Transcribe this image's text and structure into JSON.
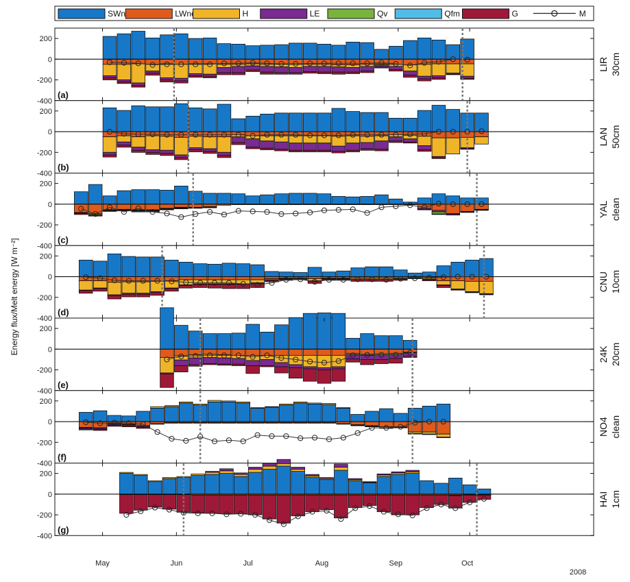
{
  "chart_data": {
    "type": "bar",
    "ylabel": "Energy flux/Melt energy [W m⁻²]",
    "year": "2008",
    "months": [
      "May",
      "Jun",
      "Jul",
      "Aug",
      "Sep",
      "Oct"
    ],
    "ylim": [
      -400,
      300
    ],
    "yticks": [
      200,
      0,
      -200,
      -400
    ],
    "legend": [
      {
        "key": "SWnet",
        "name": "SWnet",
        "color": "#1878c8"
      },
      {
        "key": "LWnet",
        "name": "LWnet",
        "color": "#e05a1c"
      },
      {
        "key": "H",
        "name": "H",
        "color": "#f0b428"
      },
      {
        "key": "LE",
        "name": "LE",
        "color": "#7a2a90"
      },
      {
        "key": "Qv",
        "name": "Qv",
        "color": "#78b43c"
      },
      {
        "key": "Qfm",
        "name": "Qfm",
        "color": "#50bce8"
      },
      {
        "key": "G",
        "name": "G",
        "color": "#a01838"
      },
      {
        "key": "M",
        "name": "M",
        "color": "#222222"
      }
    ],
    "panels": [
      {
        "letter": "(a)",
        "site": "LIR",
        "condition": "30cm",
        "start_day": 0,
        "vlines": [
          30,
          151
        ],
        "SWnet": [
          220,
          245,
          270,
          205,
          235,
          245,
          200,
          205,
          150,
          145,
          130,
          135,
          140,
          155,
          155,
          145,
          135,
          165,
          160,
          95,
          125,
          180,
          205,
          185,
          140,
          195
        ],
        "LWnet": [
          -50,
          -50,
          -45,
          -50,
          -45,
          -50,
          -45,
          -45,
          -50,
          -50,
          -45,
          -50,
          -50,
          -50,
          -50,
          -50,
          -55,
          -55,
          -50,
          -45,
          -50,
          -55,
          -50,
          -45,
          -45,
          -45
        ],
        "H": [
          -110,
          -150,
          -185,
          -65,
          -135,
          -135,
          -95,
          -100,
          -30,
          -20,
          -20,
          -20,
          -25,
          -30,
          -20,
          -20,
          -20,
          -25,
          -20,
          -10,
          -20,
          -60,
          -115,
          -115,
          -90,
          -120
        ],
        "LE": [
          -20,
          -20,
          -25,
          -20,
          -20,
          -25,
          -20,
          -20,
          -50,
          -60,
          -40,
          -55,
          -55,
          -50,
          -50,
          -55,
          -50,
          -45,
          -45,
          -20,
          -30,
          -40,
          -25,
          -20,
          -10,
          -20
        ],
        "G": [
          -20,
          -15,
          -15,
          -20,
          -20,
          -20,
          -15,
          -15,
          -20,
          -20,
          -15,
          -20,
          -15,
          -15,
          -15,
          -15,
          -20,
          -15,
          -15,
          -10,
          -15,
          -20,
          -20,
          -15,
          -5,
          -10
        ],
        "M": [
          -30,
          -35,
          -40,
          -55,
          -50,
          -50,
          -50,
          -50,
          -40,
          -40,
          -35,
          -40,
          -45,
          -45,
          -40,
          -40,
          -40,
          -40,
          -40,
          -35,
          -45,
          -60,
          -35,
          -25,
          0,
          -5
        ]
      },
      {
        "letter": "(b)",
        "site": "LAN",
        "condition": "50cm",
        "start_day": 0,
        "vlines": [
          36,
          153
        ],
        "SWnet": [
          230,
          205,
          250,
          240,
          240,
          270,
          230,
          220,
          265,
          125,
          150,
          170,
          180,
          180,
          180,
          180,
          225,
          195,
          185,
          185,
          130,
          130,
          205,
          255,
          215,
          180,
          180
        ],
        "LWnet": [
          -50,
          -40,
          -50,
          -40,
          -45,
          -55,
          -45,
          -50,
          -50,
          -30,
          -40,
          -40,
          -40,
          -40,
          -40,
          -40,
          -45,
          -40,
          -45,
          -40,
          -30,
          -35,
          -45,
          -60,
          -60,
          -55,
          -50
        ],
        "H": [
          -150,
          -60,
          -100,
          -135,
          -135,
          -170,
          -110,
          -115,
          -150,
          -20,
          -30,
          -50,
          -60,
          -70,
          -70,
          -70,
          -95,
          -70,
          -60,
          -50,
          -20,
          -35,
          -90,
          -180,
          -155,
          -100,
          -70
        ],
        "LE": [
          -25,
          -30,
          -30,
          -25,
          -30,
          -25,
          -20,
          -25,
          -30,
          -55,
          -80,
          -70,
          -70,
          -70,
          -70,
          -70,
          -50,
          -70,
          -60,
          -80,
          -40,
          -30,
          -40,
          -10,
          0,
          -10,
          0
        ],
        "G": [
          -20,
          -20,
          -20,
          -20,
          -20,
          -20,
          -20,
          -20,
          -20,
          -20,
          -15,
          -15,
          -15,
          -15,
          -15,
          -15,
          -15,
          -15,
          -15,
          -15,
          -15,
          -10,
          -15,
          -10,
          0,
          -5,
          0
        ],
        "M": [
          0,
          -20,
          -25,
          -25,
          -30,
          -30,
          -30,
          -30,
          -30,
          -30,
          -40,
          -30,
          -30,
          -30,
          -35,
          -35,
          -35,
          -30,
          -30,
          -30,
          -30,
          -25,
          -20,
          0,
          0,
          0,
          5
        ]
      },
      {
        "letter": "(c)",
        "site": "YAL",
        "condition": "clean",
        "start_day": -12,
        "vlines": [
          38,
          157
        ],
        "SWnet": [
          120,
          190,
          80,
          130,
          140,
          140,
          135,
          175,
          125,
          105,
          105,
          100,
          80,
          90,
          100,
          105,
          105,
          100,
          75,
          70,
          75,
          90,
          50,
          20,
          60,
          100,
          80,
          60,
          60
        ],
        "LWnet": [
          -80,
          -90,
          -55,
          -50,
          -55,
          -55,
          -40,
          -30,
          -30,
          -25,
          -10,
          -5,
          -5,
          -5,
          -5,
          -5,
          -5,
          -5,
          -5,
          -5,
          -5,
          -5,
          -5,
          -5,
          -40,
          -60,
          -90,
          -70,
          -50
        ],
        "H": [
          -5,
          -10,
          -5,
          -5,
          -5,
          -5,
          -5,
          -5,
          0,
          0,
          0,
          0,
          0,
          0,
          0,
          0,
          0,
          0,
          0,
          0,
          0,
          0,
          0,
          0,
          0,
          0,
          0,
          0,
          0
        ],
        "LE": [
          -5,
          -5,
          -5,
          -5,
          -5,
          -5,
          -5,
          -5,
          -5,
          -5,
          0,
          0,
          0,
          0,
          0,
          0,
          0,
          0,
          0,
          0,
          0,
          0,
          0,
          0,
          -10,
          -15,
          -10,
          -5,
          -5
        ],
        "Qv": [
          0,
          0,
          0,
          0,
          0,
          0,
          0,
          0,
          0,
          0,
          0,
          0,
          0,
          0,
          0,
          0,
          0,
          0,
          0,
          0,
          0,
          0,
          0,
          0,
          0,
          -20,
          0,
          0,
          0
        ],
        "G": [
          -10,
          -10,
          -5,
          -5,
          -10,
          -10,
          -5,
          -5,
          -5,
          -5,
          0,
          0,
          0,
          0,
          0,
          0,
          0,
          0,
          0,
          0,
          0,
          0,
          0,
          0,
          -5,
          -5,
          -5,
          -5,
          -5
        ],
        "M": [
          -45,
          -95,
          -30,
          -75,
          -40,
          -75,
          -90,
          -125,
          -95,
          -75,
          -100,
          -65,
          -70,
          -75,
          -95,
          -90,
          -80,
          -60,
          -55,
          -50,
          -85,
          -30,
          -20,
          -10,
          -30,
          5,
          0,
          0,
          0
        ]
      },
      {
        "letter": "(d)",
        "site": "CNU",
        "condition": "10cm",
        "start_day": -10,
        "vlines": [
          25,
          160
        ],
        "SWnet": [
          160,
          150,
          220,
          195,
          190,
          190,
          160,
          140,
          125,
          120,
          130,
          125,
          115,
          50,
          45,
          40,
          90,
          45,
          55,
          85,
          95,
          95,
          65,
          35,
          45,
          105,
          140,
          160,
          175
        ],
        "LWnet": [
          -40,
          -40,
          -55,
          -50,
          -50,
          -45,
          -40,
          -30,
          -30,
          -30,
          -30,
          -30,
          -30,
          -20,
          -15,
          -15,
          -20,
          -15,
          -15,
          -15,
          -15,
          -15,
          -15,
          -10,
          -15,
          -40,
          -40,
          -45,
          -45
        ],
        "H": [
          -90,
          -70,
          -120,
          -110,
          -110,
          -100,
          -70,
          -50,
          -40,
          -40,
          -40,
          -40,
          -30,
          -10,
          -5,
          0,
          -20,
          -5,
          -5,
          -10,
          -10,
          -10,
          -5,
          0,
          -10,
          -40,
          -80,
          -100,
          -120
        ],
        "LE": [
          -5,
          -5,
          -10,
          -10,
          -10,
          -10,
          -5,
          -5,
          -5,
          -5,
          -5,
          -5,
          -5,
          -5,
          -5,
          -5,
          -5,
          -5,
          -5,
          -5,
          -5,
          -5,
          -5,
          -5,
          -5,
          -5,
          -5,
          -5,
          -5
        ],
        "G": [
          -25,
          -25,
          -30,
          -25,
          -25,
          -25,
          -25,
          -25,
          -30,
          -35,
          -40,
          -40,
          -40,
          -15,
          -10,
          -10,
          -20,
          -10,
          -10,
          -15,
          -15,
          -15,
          -10,
          -5,
          -10,
          -20,
          -5,
          -5,
          -5
        ],
        "M": [
          -5,
          -15,
          -35,
          -40,
          -40,
          -40,
          -45,
          -55,
          -60,
          -60,
          -60,
          -70,
          -80,
          -60,
          -30,
          -25,
          -50,
          -30,
          -30,
          -25,
          -25,
          -30,
          -20,
          -15,
          -10,
          -5,
          0,
          0,
          0
        ]
      },
      {
        "letter": "(e)",
        "site": "24K",
        "condition": "20cm",
        "start_day": 24,
        "vlines": [
          41,
          130
        ],
        "SWnet": [
          400,
          230,
          175,
          150,
          150,
          155,
          240,
          165,
          235,
          305,
          345,
          350,
          345,
          105,
          150,
          130,
          130,
          85
        ],
        "LWnet": [
          -80,
          -65,
          -55,
          -50,
          -55,
          -60,
          -60,
          -60,
          -60,
          -60,
          -60,
          -60,
          -60,
          -40,
          -50,
          -45,
          -40,
          -30
        ],
        "H": [
          -150,
          -40,
          -30,
          -30,
          -30,
          -30,
          -50,
          -40,
          -70,
          -90,
          -110,
          -120,
          -110,
          -10,
          -10,
          -10,
          -10,
          -5
        ],
        "LE": [
          -10,
          -55,
          -65,
          -60,
          -60,
          -55,
          -50,
          -60,
          -40,
          -30,
          -20,
          -20,
          -20,
          -45,
          -40,
          -45,
          -40,
          -35
        ],
        "G": [
          -130,
          -60,
          -15,
          -10,
          -10,
          -15,
          -75,
          -10,
          -60,
          -100,
          -120,
          -130,
          -120,
          -30,
          -50,
          -40,
          -45,
          -10
        ],
        "M": [
          -100,
          -70,
          -65,
          -60,
          -60,
          -60,
          -75,
          -60,
          -85,
          -100,
          -120,
          -130,
          -115,
          -60,
          -55,
          -55,
          -55,
          -35
        ]
      },
      {
        "letter": "(f)",
        "site": "NO4",
        "condition": "clean",
        "start_day": -10,
        "vlines": [
          41,
          130
        ],
        "SWnet": [
          90,
          105,
          60,
          55,
          100,
          130,
          145,
          180,
          160,
          190,
          190,
          180,
          130,
          140,
          160,
          180,
          170,
          165,
          130,
          70,
          100,
          125,
          80,
          130,
          150,
          170
        ],
        "LWnet": [
          -55,
          -60,
          -20,
          -25,
          -40,
          -20,
          -10,
          -10,
          -10,
          -10,
          -10,
          -10,
          -10,
          -10,
          -10,
          -10,
          -10,
          -10,
          -20,
          -30,
          -40,
          -50,
          -50,
          -100,
          -100,
          -120
        ],
        "H": [
          -5,
          -5,
          -5,
          -5,
          -5,
          15,
          10,
          10,
          10,
          15,
          10,
          10,
          5,
          5,
          10,
          10,
          10,
          10,
          5,
          -5,
          -5,
          -10,
          -5,
          -15,
          -20,
          -30
        ],
        "LE": [
          -10,
          -10,
          -10,
          -10,
          -10,
          -5,
          -5,
          -5,
          -5,
          -5,
          -5,
          -5,
          -5,
          -5,
          -5,
          -5,
          -5,
          -5,
          -5,
          -5,
          -5,
          -5,
          -5,
          -5,
          -5,
          -5
        ],
        "G": [
          -10,
          -10,
          -10,
          -10,
          -10,
          0,
          0,
          0,
          0,
          0,
          0,
          0,
          0,
          0,
          0,
          0,
          0,
          0,
          0,
          0,
          0,
          0,
          0,
          0,
          0,
          0
        ],
        "M": [
          -5,
          -15,
          -10,
          -15,
          -25,
          -100,
          -165,
          -185,
          -145,
          -190,
          -180,
          -190,
          -130,
          -140,
          -140,
          -160,
          -155,
          -170,
          -155,
          -110,
          -60,
          -60,
          -50,
          -10,
          0,
          0
        ]
      },
      {
        "letter": "(g)",
        "site": "HAI",
        "condition": "1cm",
        "start_day": 7,
        "vlines": [
          34,
          157
        ],
        "SWnet": [
          200,
          180,
          120,
          150,
          160,
          180,
          190,
          200,
          170,
          210,
          240,
          270,
          220,
          160,
          140,
          230,
          130,
          110,
          170,
          190,
          200,
          130,
          105,
          155,
          90,
          50
        ],
        "LWnet": [
          -5,
          -5,
          -5,
          -5,
          -5,
          -10,
          -10,
          -10,
          -10,
          -10,
          -10,
          -10,
          -10,
          -10,
          -10,
          -10,
          -10,
          -10,
          -10,
          -10,
          -10,
          -10,
          -10,
          -10,
          -5,
          -5
        ],
        "H": [
          10,
          10,
          10,
          10,
          10,
          15,
          20,
          25,
          20,
          30,
          30,
          25,
          20,
          15,
          10,
          30,
          10,
          5,
          15,
          15,
          15,
          0,
          0,
          -5,
          -5,
          -5
        ],
        "LE": [
          0,
          0,
          0,
          0,
          0,
          0,
          10,
          20,
          15,
          20,
          30,
          40,
          20,
          15,
          10,
          30,
          10,
          5,
          10,
          10,
          15,
          0,
          0,
          0,
          0,
          0
        ],
        "G": [
          -180,
          -150,
          -120,
          -140,
          -170,
          -170,
          -175,
          -180,
          -180,
          -190,
          -230,
          -270,
          -200,
          -160,
          -140,
          -220,
          -120,
          -100,
          -160,
          -190,
          -190,
          -120,
          -90,
          -120,
          -70,
          -40
        ],
        "M": [
          -200,
          -165,
          -130,
          -150,
          -180,
          -185,
          -185,
          -195,
          -190,
          -200,
          -250,
          -290,
          -215,
          -170,
          -160,
          -240,
          -135,
          -115,
          -170,
          -195,
          -205,
          -135,
          -100,
          -135,
          -80,
          -45
        ]
      }
    ]
  }
}
